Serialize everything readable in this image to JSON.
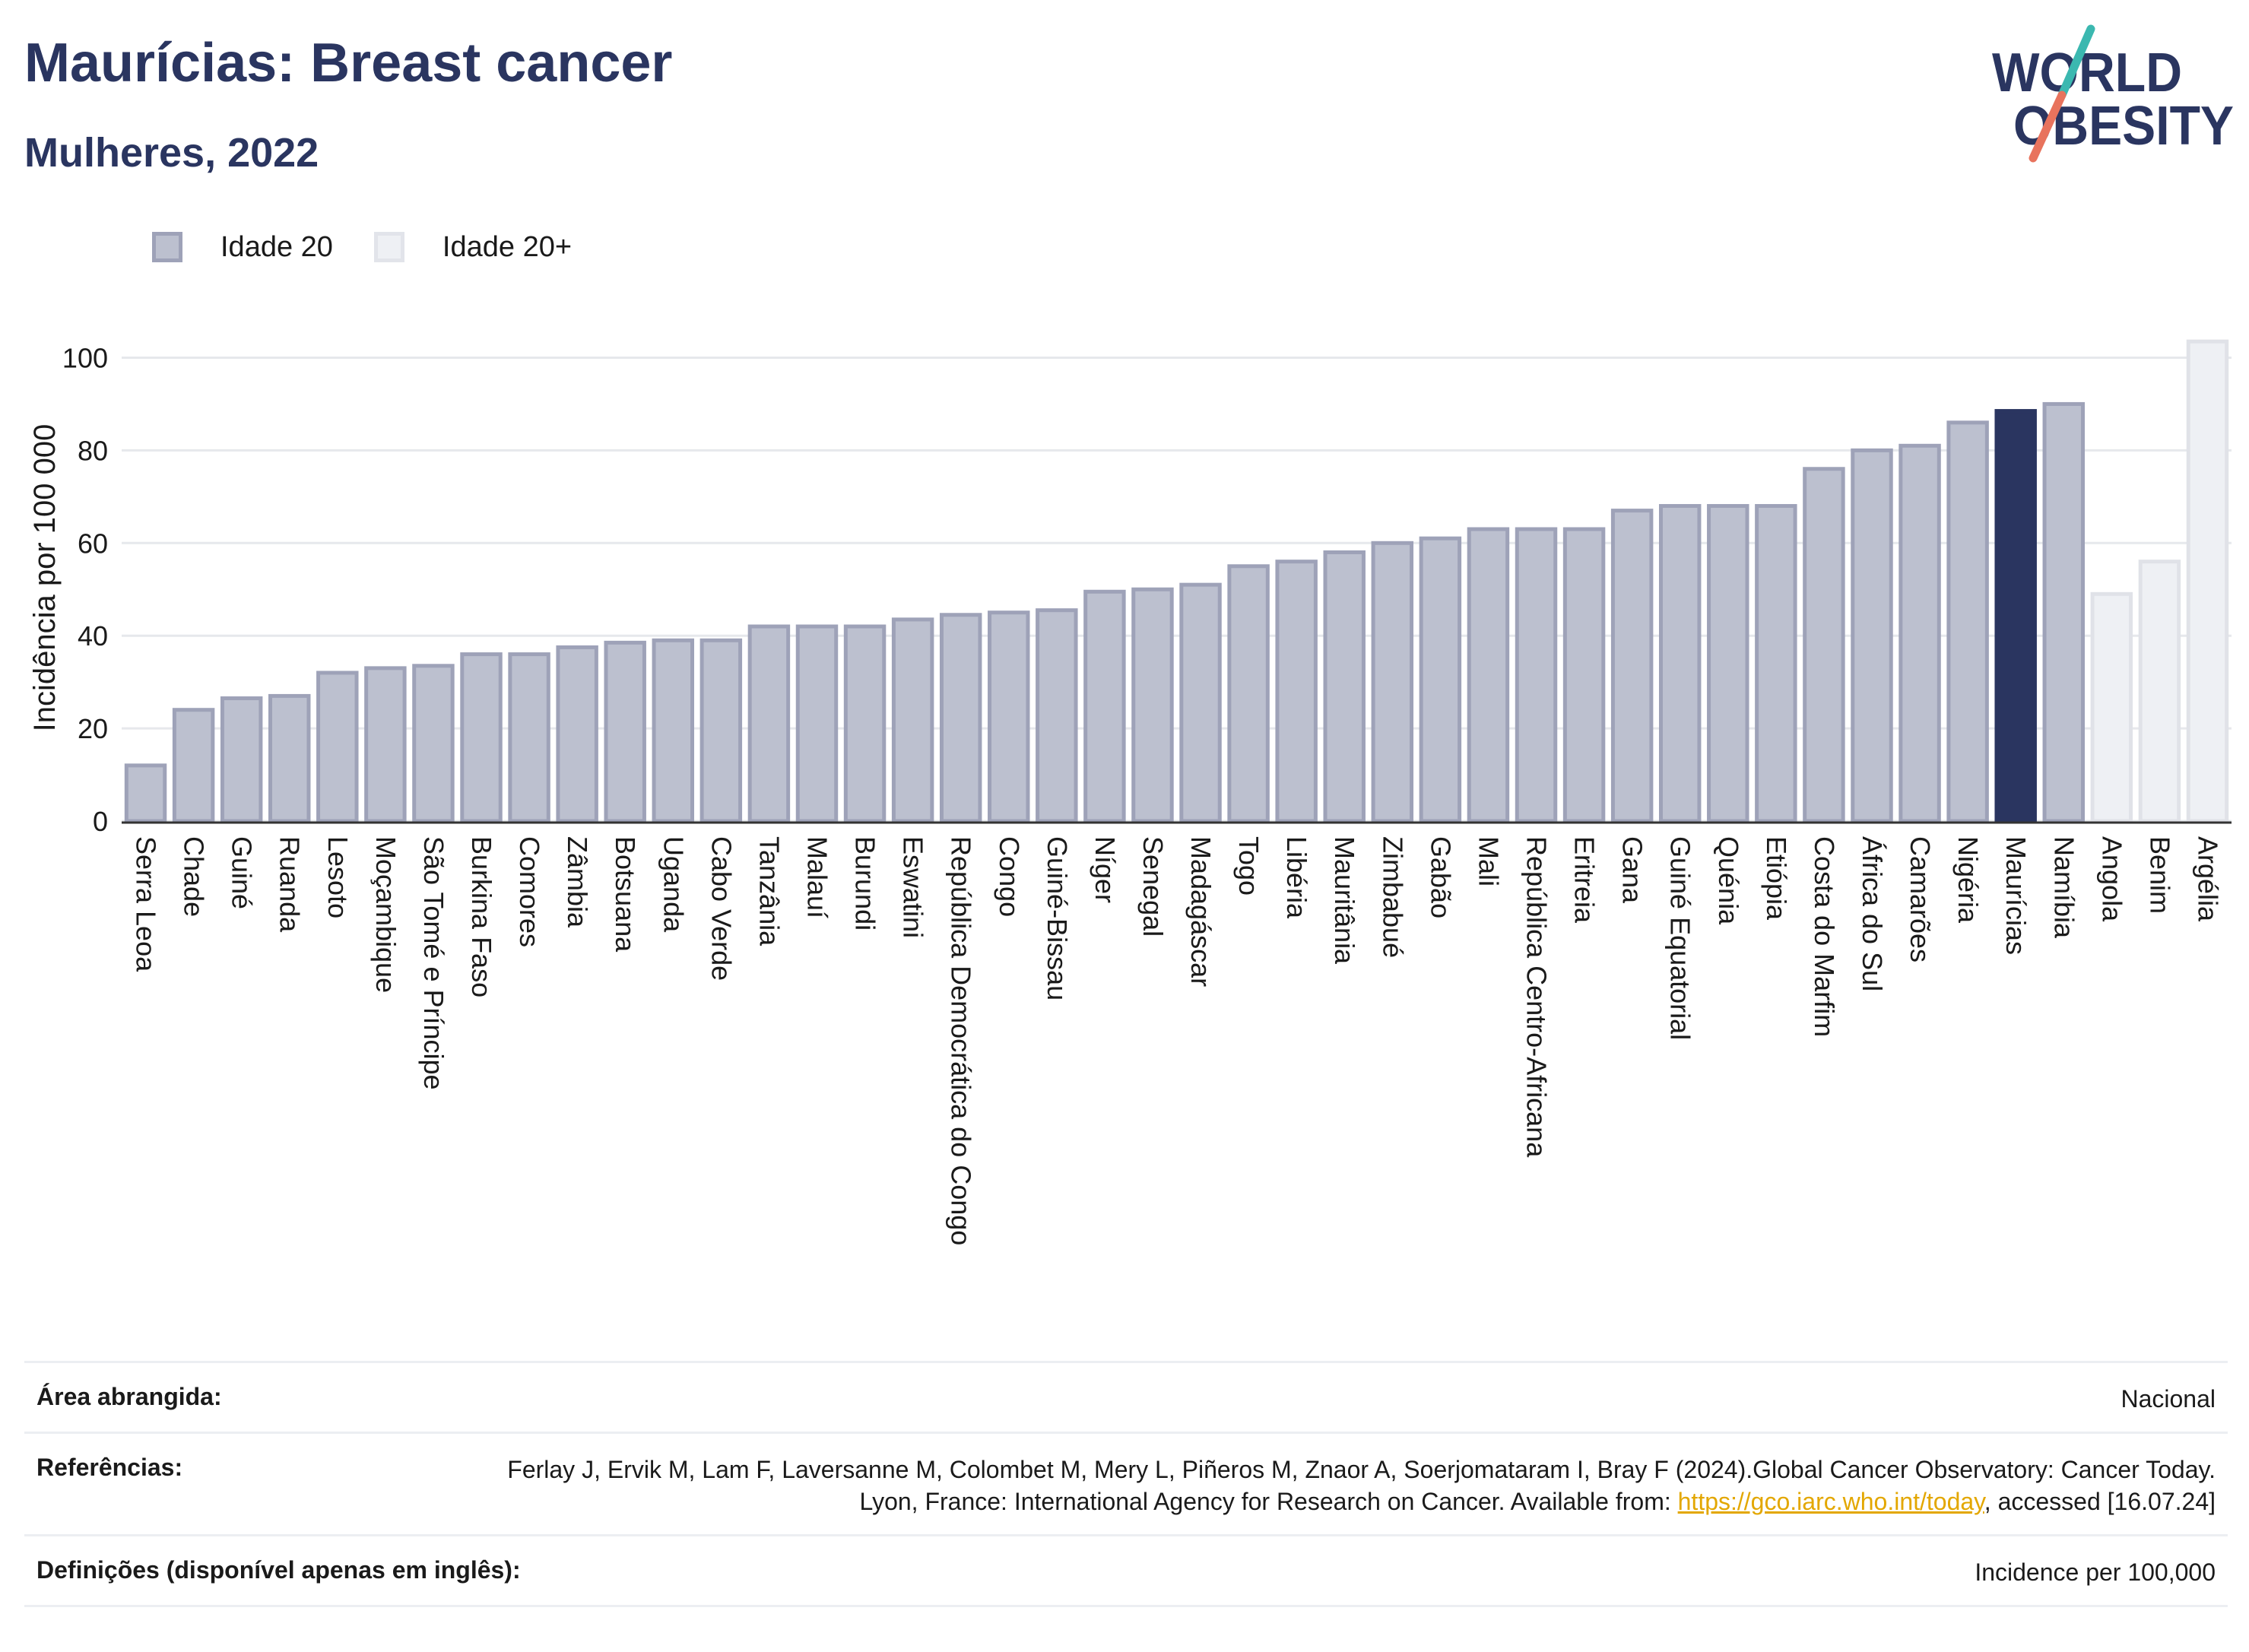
{
  "header": {
    "title": "Maurícias: Breast cancer",
    "subtitle": "Mulheres, 2022"
  },
  "logo": {
    "line1": "WORLD",
    "line2": "OBESITY"
  },
  "legend": {
    "items": [
      {
        "label": "Idade 20",
        "color": "#bcc0cf"
      },
      {
        "label": "Idade 20+",
        "color": "#eef0f4"
      }
    ]
  },
  "chart_data": {
    "type": "bar",
    "ylabel": "Incidência por 100 000",
    "ylim": [
      0,
      105
    ],
    "yticks": [
      0,
      20,
      40,
      60,
      80,
      100
    ],
    "grid": true,
    "legend_position": "top-left",
    "colors": {
      "default": "#bcc0cf",
      "highlight": "#2a3560",
      "other": "#eef0f4"
    },
    "categories": [
      "Serra Leoa",
      "Chade",
      "Guiné",
      "Ruanda",
      "Lesoto",
      "Moçambique",
      "São Tomé e Príncipe",
      "Burkina Faso",
      "Comores",
      "Zâmbia",
      "Botsuana",
      "Uganda",
      "Cabo Verde",
      "Tanzânia",
      "Malauí",
      "Burundi",
      "Eswatini",
      "República Democrática do Congo",
      "Congo",
      "Guiné-Bissau",
      "Níger",
      "Senegal",
      "Madagáscar",
      "Togo",
      "Libéria",
      "Mauritânia",
      "Zimbabué",
      "Gabão",
      "Mali",
      "República Centro-Africana",
      "Eritreia",
      "Gana",
      "Guiné Equatorial",
      "Quénia",
      "Etiópia",
      "Costa do Marfim",
      "África do Sul",
      "Camarões",
      "Nigéria",
      "Maurícias",
      "Namíbia",
      "Angola",
      "Benim",
      "Argélia"
    ],
    "values": [
      12,
      24,
      26.5,
      27,
      32,
      33,
      33.5,
      36,
      36,
      37.5,
      38.5,
      39,
      39,
      42,
      42,
      42,
      43.5,
      44.5,
      45,
      45.5,
      49.5,
      50,
      51,
      55,
      56,
      58,
      60,
      61,
      63,
      63,
      63,
      67,
      68,
      68,
      68,
      76,
      80,
      81,
      86,
      88.5,
      90,
      49,
      56,
      103.5
    ],
    "groups": [
      "Idade 20",
      "Idade 20",
      "Idade 20",
      "Idade 20",
      "Idade 20",
      "Idade 20",
      "Idade 20",
      "Idade 20",
      "Idade 20",
      "Idade 20",
      "Idade 20",
      "Idade 20",
      "Idade 20",
      "Idade 20",
      "Idade 20",
      "Idade 20",
      "Idade 20",
      "Idade 20",
      "Idade 20",
      "Idade 20",
      "Idade 20",
      "Idade 20",
      "Idade 20",
      "Idade 20",
      "Idade 20",
      "Idade 20",
      "Idade 20",
      "Idade 20",
      "Idade 20",
      "Idade 20",
      "Idade 20",
      "Idade 20",
      "Idade 20",
      "Idade 20",
      "Idade 20",
      "Idade 20",
      "Idade 20",
      "Idade 20",
      "Idade 20",
      "highlight",
      "Idade 20",
      "Idade 20+",
      "Idade 20+",
      "Idade 20+"
    ]
  },
  "footer": {
    "rows": [
      {
        "label": "Área abrangida:",
        "value": "Nacional"
      },
      {
        "label": "Referências:",
        "value_pre": "Ferlay J, Ervik M, Lam F, Laversanne M, Colombet M, Mery L, Piñeros M, Znaor A, Soerjomataram I, Bray F (2024).Global Cancer Observatory: Cancer Today. Lyon, France: International Agency for Research on Cancer. Available from: ",
        "link": "https://gco.iarc.who.int/today",
        "value_post": ", accessed [16.07.24]"
      },
      {
        "label": "Definições (disponível apenas em inglês):",
        "value": "Incidence per 100,000"
      }
    ]
  }
}
